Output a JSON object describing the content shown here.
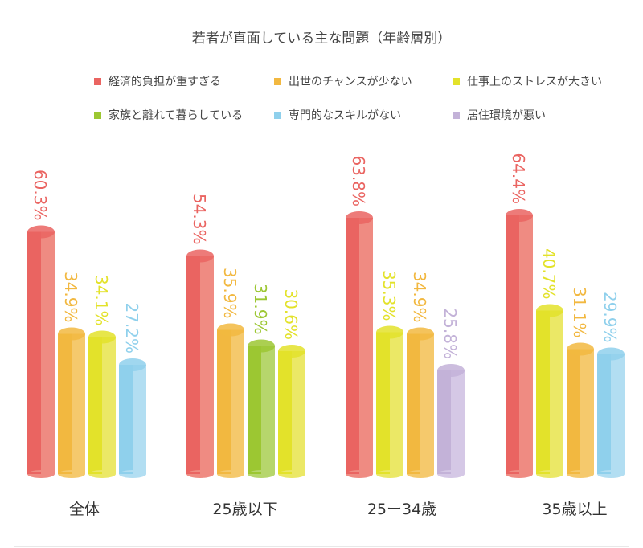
{
  "chart_data": {
    "type": "bar",
    "title": "若者が直面している主な問題（年齢層別）",
    "legend_position": "top",
    "legend": [
      {
        "name": "経済的負担が重すぎる",
        "color": "#ea6461",
        "light": "#ef8b82"
      },
      {
        "name": "出世のチャンスが少ない",
        "color": "#f2b840",
        "light": "#f5c96c"
      },
      {
        "name": "仕事上のストレスが大きい",
        "color": "#e3e22a",
        "light": "#ebe866"
      },
      {
        "name": "家族と離れて暮らしている",
        "color": "#9cc732",
        "light": "#b6d66c"
      },
      {
        "name": "専門的なスキルがない",
        "color": "#8fd0ec",
        "light": "#b2def2"
      },
      {
        "name": "居住環境が悪い",
        "color": "#c3b2d8",
        "light": "#d5c8e6"
      }
    ],
    "groups": [
      {
        "category": "全体",
        "bars": [
          {
            "series": 0,
            "value": 60.3,
            "label": "60.3%"
          },
          {
            "series": 1,
            "value": 34.9,
            "label": "34.9%"
          },
          {
            "series": 2,
            "value": 34.1,
            "label": "34.1%"
          },
          {
            "series": 4,
            "value": 27.2,
            "label": "27.2%"
          }
        ]
      },
      {
        "category": "25歳以下",
        "bars": [
          {
            "series": 0,
            "value": 54.3,
            "label": "54.3%"
          },
          {
            "series": 1,
            "value": 35.9,
            "label": "35.9%"
          },
          {
            "series": 3,
            "value": 31.9,
            "label": "31.9%"
          },
          {
            "series": 2,
            "value": 30.6,
            "label": "30.6%"
          }
        ]
      },
      {
        "category": "25ー34歳",
        "bars": [
          {
            "series": 0,
            "value": 63.8,
            "label": "63.8%"
          },
          {
            "series": 2,
            "value": 35.3,
            "label": "35.3%"
          },
          {
            "series": 1,
            "value": 34.9,
            "label": "34.9%"
          },
          {
            "series": 5,
            "value": 25.8,
            "label": "25.8%"
          }
        ]
      },
      {
        "category": "35歳以上",
        "bars": [
          {
            "series": 0,
            "value": 64.4,
            "label": "64.4%"
          },
          {
            "series": 2,
            "value": 40.7,
            "label": "40.7%"
          },
          {
            "series": 1,
            "value": 31.1,
            "label": "31.1%"
          },
          {
            "series": 4,
            "value": 29.9,
            "label": "29.9%"
          }
        ]
      }
    ],
    "ylim": [
      0,
      70
    ],
    "grid": false
  }
}
